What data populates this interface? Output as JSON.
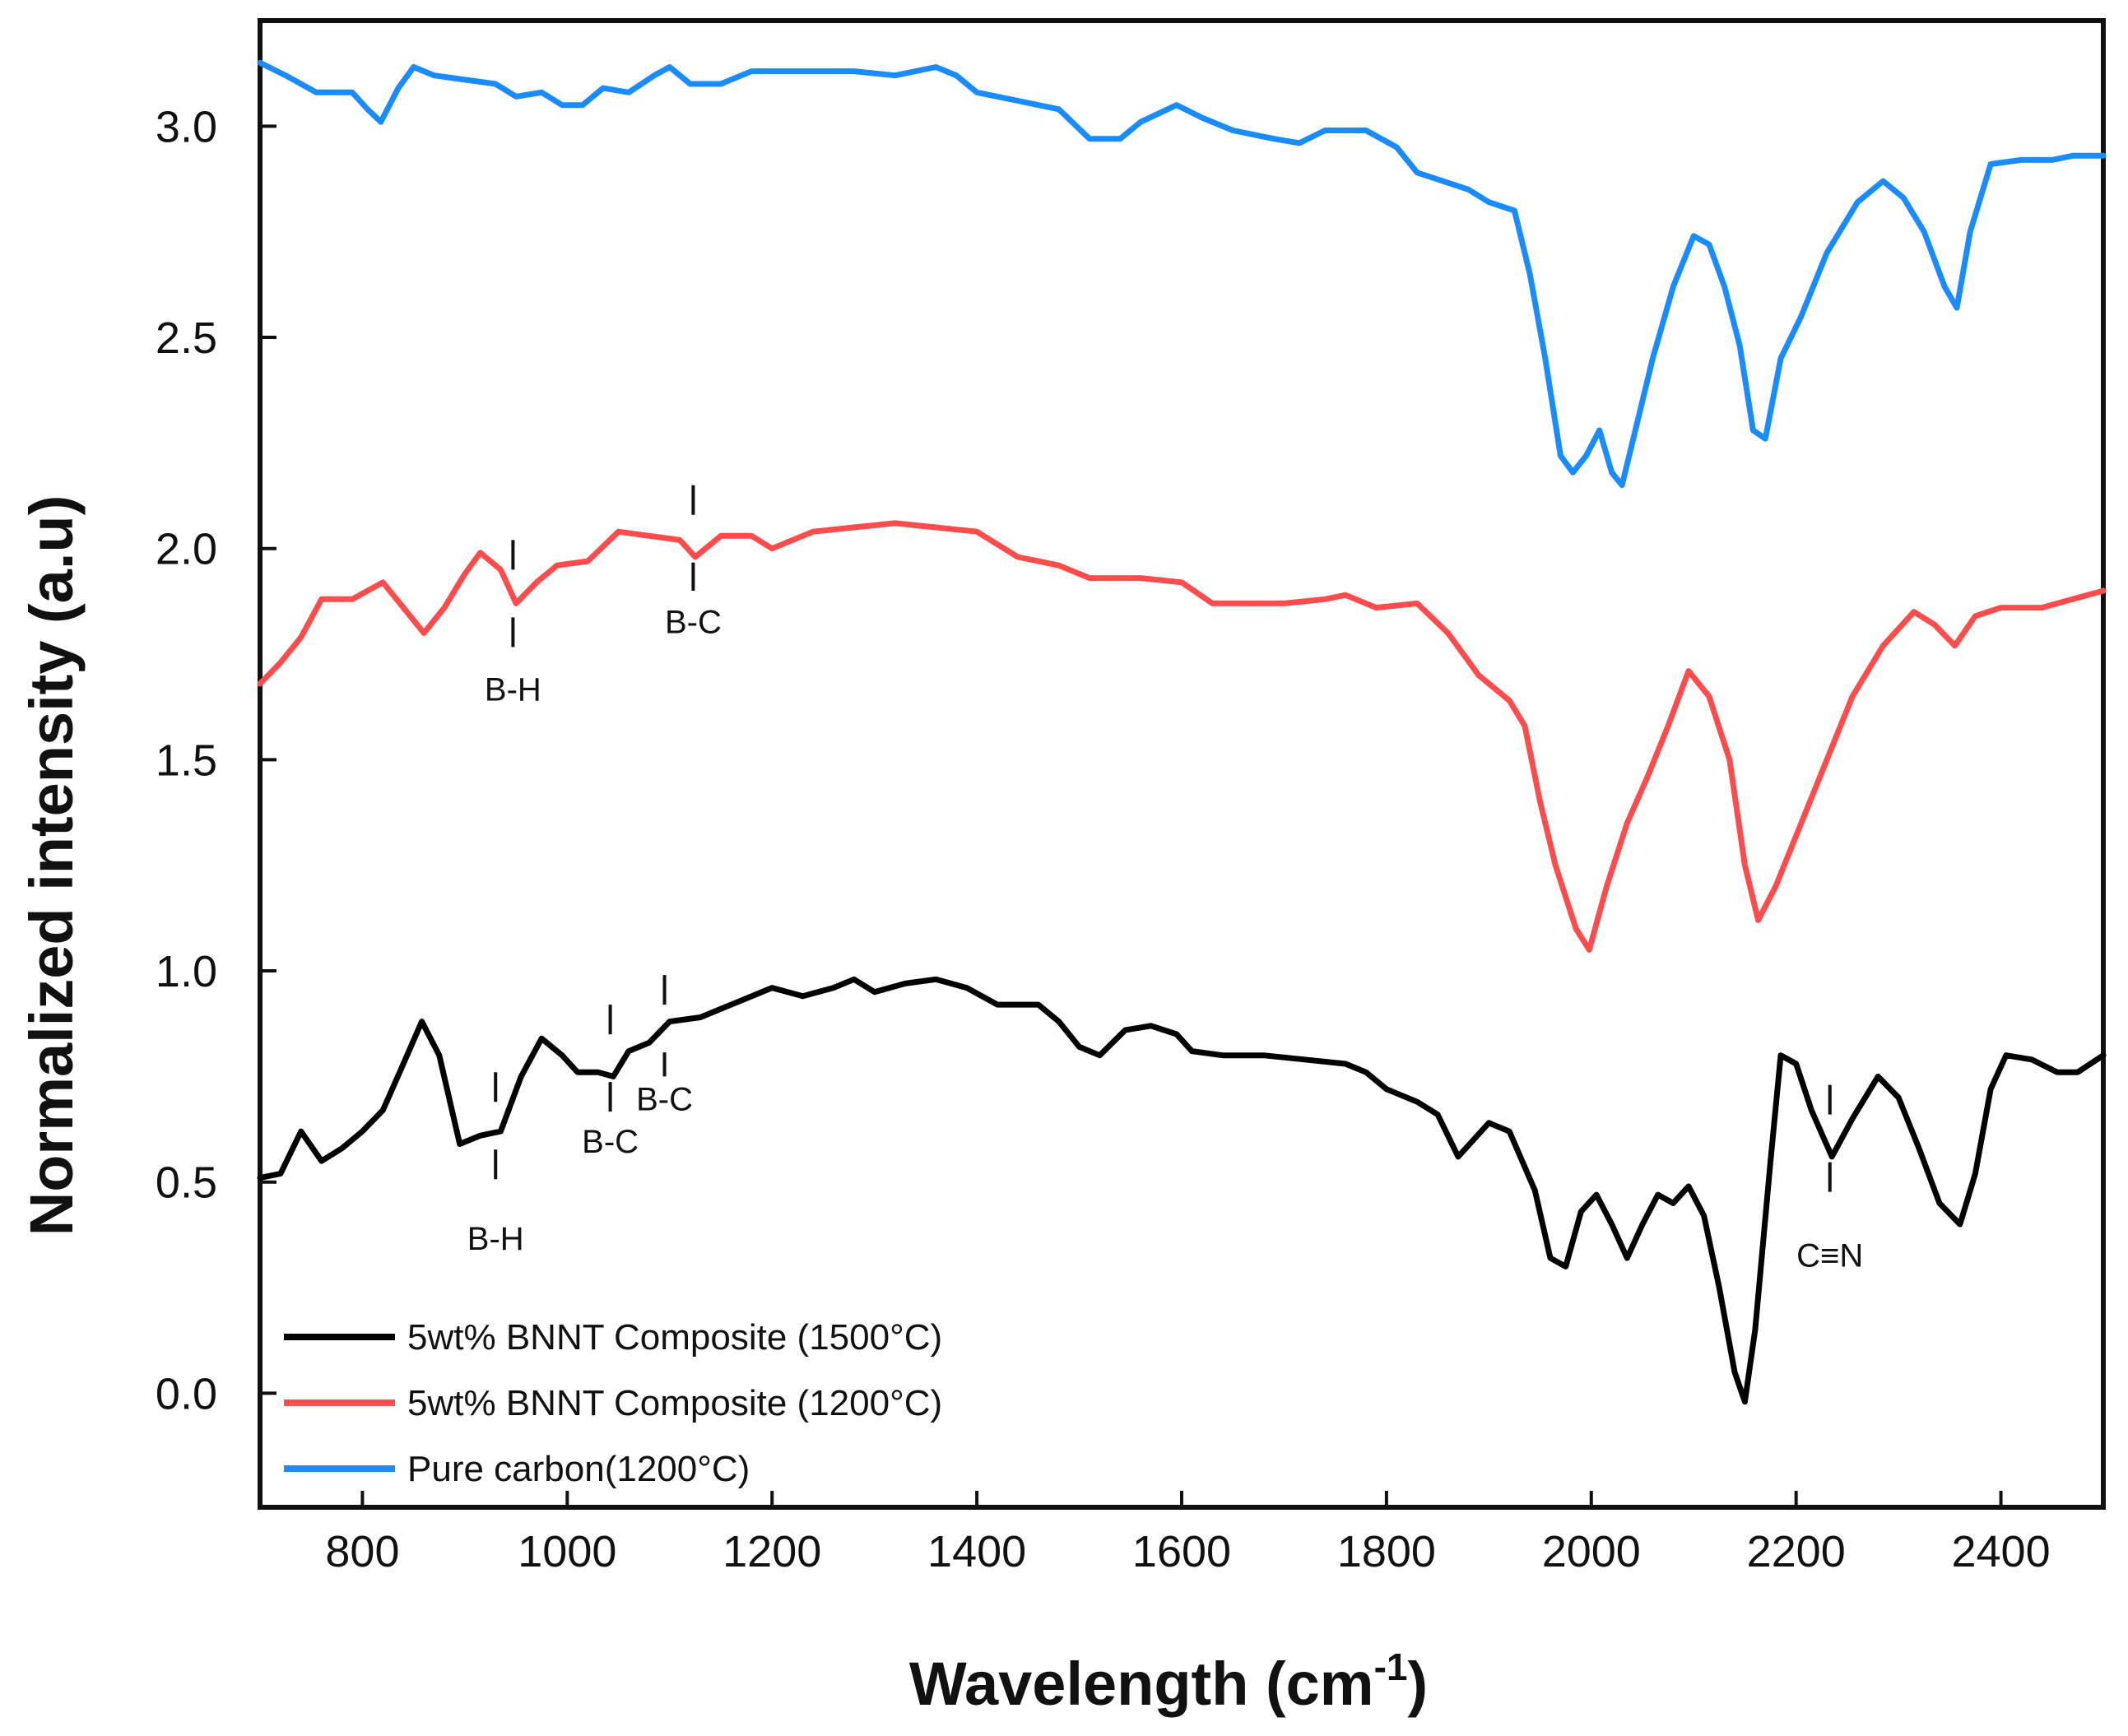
{
  "chart_data": {
    "type": "line",
    "title": "",
    "xlabel": "Wavelength (cm",
    "xlabel_sup": "-1",
    "xlabel_close": ")",
    "ylabel": "Normalized intensity (a.u)",
    "xlim": [
      700,
      2500
    ],
    "ylim": [
      -0.27,
      3.25
    ],
    "x_ticks": [
      800,
      1000,
      1200,
      1400,
      1600,
      1800,
      2000,
      2200,
      2400
    ],
    "x_tick_labels": [
      "800",
      "1000",
      "1200",
      "1400",
      "1600",
      "1800",
      "2000",
      "2200",
      "2400"
    ],
    "y_ticks": [
      0.0,
      0.5,
      1.0,
      1.5,
      2.0,
      2.5,
      3.0
    ],
    "y_tick_labels": [
      "0.0",
      "0.5",
      "1.0",
      "1.5",
      "2.0",
      "2.5",
      "3.0"
    ],
    "grid": false,
    "legend_position": "bottom-left",
    "series": [
      {
        "name": "5wt% BNNT Composite (1500°C)",
        "color": "#000000",
        "points": [
          [
            700,
            0.51
          ],
          [
            720,
            0.52
          ],
          [
            740,
            0.62
          ],
          [
            760,
            0.55
          ],
          [
            780,
            0.58
          ],
          [
            800,
            0.62
          ],
          [
            820,
            0.67
          ],
          [
            840,
            0.78
          ],
          [
            858,
            0.88
          ],
          [
            875,
            0.8
          ],
          [
            895,
            0.59
          ],
          [
            915,
            0.61
          ],
          [
            935,
            0.62
          ],
          [
            955,
            0.75
          ],
          [
            975,
            0.84
          ],
          [
            995,
            0.8
          ],
          [
            1010,
            0.76
          ],
          [
            1030,
            0.76
          ],
          [
            1045,
            0.75
          ],
          [
            1060,
            0.81
          ],
          [
            1080,
            0.83
          ],
          [
            1100,
            0.88
          ],
          [
            1130,
            0.89
          ],
          [
            1160,
            0.92
          ],
          [
            1200,
            0.96
          ],
          [
            1230,
            0.94
          ],
          [
            1260,
            0.96
          ],
          [
            1280,
            0.98
          ],
          [
            1300,
            0.95
          ],
          [
            1330,
            0.97
          ],
          [
            1360,
            0.98
          ],
          [
            1390,
            0.96
          ],
          [
            1420,
            0.92
          ],
          [
            1460,
            0.92
          ],
          [
            1480,
            0.88
          ],
          [
            1500,
            0.82
          ],
          [
            1520,
            0.8
          ],
          [
            1545,
            0.86
          ],
          [
            1570,
            0.87
          ],
          [
            1595,
            0.85
          ],
          [
            1610,
            0.81
          ],
          [
            1640,
            0.8
          ],
          [
            1680,
            0.8
          ],
          [
            1720,
            0.79
          ],
          [
            1760,
            0.78
          ],
          [
            1780,
            0.76
          ],
          [
            1800,
            0.72
          ],
          [
            1830,
            0.69
          ],
          [
            1850,
            0.66
          ],
          [
            1870,
            0.56
          ],
          [
            1900,
            0.64
          ],
          [
            1920,
            0.62
          ],
          [
            1945,
            0.48
          ],
          [
            1960,
            0.32
          ],
          [
            1975,
            0.3
          ],
          [
            1990,
            0.43
          ],
          [
            2005,
            0.47
          ],
          [
            2020,
            0.4
          ],
          [
            2035,
            0.32
          ],
          [
            2050,
            0.4
          ],
          [
            2065,
            0.47
          ],
          [
            2080,
            0.45
          ],
          [
            2095,
            0.49
          ],
          [
            2110,
            0.42
          ],
          [
            2125,
            0.25
          ],
          [
            2140,
            0.05
          ],
          [
            2150,
            -0.02
          ],
          [
            2160,
            0.15
          ],
          [
            2175,
            0.55
          ],
          [
            2185,
            0.8
          ],
          [
            2200,
            0.78
          ],
          [
            2215,
            0.67
          ],
          [
            2235,
            0.56
          ],
          [
            2255,
            0.65
          ],
          [
            2280,
            0.75
          ],
          [
            2300,
            0.7
          ],
          [
            2320,
            0.58
          ],
          [
            2340,
            0.45
          ],
          [
            2360,
            0.4
          ],
          [
            2375,
            0.52
          ],
          [
            2390,
            0.72
          ],
          [
            2405,
            0.8
          ],
          [
            2430,
            0.79
          ],
          [
            2455,
            0.76
          ],
          [
            2475,
            0.76
          ],
          [
            2500,
            0.8
          ]
        ]
      },
      {
        "name": "5wt% BNNT Composite (1200°C)",
        "color": "#ff4d4d",
        "points": [
          [
            700,
            1.68
          ],
          [
            720,
            1.73
          ],
          [
            740,
            1.79
          ],
          [
            760,
            1.88
          ],
          [
            790,
            1.88
          ],
          [
            820,
            1.92
          ],
          [
            840,
            1.86
          ],
          [
            860,
            1.8
          ],
          [
            880,
            1.86
          ],
          [
            900,
            1.94
          ],
          [
            915,
            1.99
          ],
          [
            935,
            1.95
          ],
          [
            950,
            1.87
          ],
          [
            970,
            1.92
          ],
          [
            990,
            1.96
          ],
          [
            1020,
            1.97
          ],
          [
            1050,
            2.04
          ],
          [
            1080,
            2.03
          ],
          [
            1110,
            2.02
          ],
          [
            1125,
            1.98
          ],
          [
            1150,
            2.03
          ],
          [
            1180,
            2.03
          ],
          [
            1200,
            2.0
          ],
          [
            1240,
            2.04
          ],
          [
            1280,
            2.05
          ],
          [
            1320,
            2.06
          ],
          [
            1360,
            2.05
          ],
          [
            1400,
            2.04
          ],
          [
            1440,
            1.98
          ],
          [
            1480,
            1.96
          ],
          [
            1510,
            1.93
          ],
          [
            1560,
            1.93
          ],
          [
            1600,
            1.92
          ],
          [
            1630,
            1.87
          ],
          [
            1660,
            1.87
          ],
          [
            1700,
            1.87
          ],
          [
            1740,
            1.88
          ],
          [
            1760,
            1.89
          ],
          [
            1790,
            1.86
          ],
          [
            1830,
            1.87
          ],
          [
            1860,
            1.8
          ],
          [
            1890,
            1.7
          ],
          [
            1920,
            1.64
          ],
          [
            1935,
            1.58
          ],
          [
            1950,
            1.4
          ],
          [
            1965,
            1.25
          ],
          [
            1985,
            1.1
          ],
          [
            1998,
            1.05
          ],
          [
            2015,
            1.2
          ],
          [
            2035,
            1.35
          ],
          [
            2055,
            1.46
          ],
          [
            2075,
            1.58
          ],
          [
            2095,
            1.71
          ],
          [
            2115,
            1.65
          ],
          [
            2135,
            1.5
          ],
          [
            2150,
            1.25
          ],
          [
            2163,
            1.12
          ],
          [
            2180,
            1.2
          ],
          [
            2205,
            1.35
          ],
          [
            2230,
            1.5
          ],
          [
            2255,
            1.65
          ],
          [
            2285,
            1.77
          ],
          [
            2315,
            1.85
          ],
          [
            2335,
            1.82
          ],
          [
            2355,
            1.77
          ],
          [
            2375,
            1.84
          ],
          [
            2400,
            1.86
          ],
          [
            2440,
            1.86
          ],
          [
            2470,
            1.88
          ],
          [
            2500,
            1.9
          ]
        ]
      },
      {
        "name": "Pure carbon(1200°C)",
        "color": "#1a8cff",
        "points": [
          [
            700,
            3.15
          ],
          [
            725,
            3.12
          ],
          [
            755,
            3.08
          ],
          [
            790,
            3.08
          ],
          [
            805,
            3.04
          ],
          [
            818,
            3.01
          ],
          [
            835,
            3.09
          ],
          [
            850,
            3.14
          ],
          [
            870,
            3.12
          ],
          [
            900,
            3.11
          ],
          [
            930,
            3.1
          ],
          [
            950,
            3.07
          ],
          [
            975,
            3.08
          ],
          [
            995,
            3.05
          ],
          [
            1015,
            3.05
          ],
          [
            1035,
            3.09
          ],
          [
            1060,
            3.08
          ],
          [
            1085,
            3.12
          ],
          [
            1100,
            3.14
          ],
          [
            1120,
            3.1
          ],
          [
            1150,
            3.1
          ],
          [
            1180,
            3.13
          ],
          [
            1230,
            3.13
          ],
          [
            1280,
            3.13
          ],
          [
            1320,
            3.12
          ],
          [
            1360,
            3.14
          ],
          [
            1380,
            3.12
          ],
          [
            1400,
            3.08
          ],
          [
            1440,
            3.06
          ],
          [
            1480,
            3.04
          ],
          [
            1510,
            2.97
          ],
          [
            1540,
            2.97
          ],
          [
            1560,
            3.01
          ],
          [
            1595,
            3.05
          ],
          [
            1620,
            3.02
          ],
          [
            1650,
            2.99
          ],
          [
            1690,
            2.97
          ],
          [
            1715,
            2.96
          ],
          [
            1740,
            2.99
          ],
          [
            1780,
            2.99
          ],
          [
            1810,
            2.95
          ],
          [
            1830,
            2.89
          ],
          [
            1855,
            2.87
          ],
          [
            1880,
            2.85
          ],
          [
            1900,
            2.82
          ],
          [
            1925,
            2.8
          ],
          [
            1940,
            2.65
          ],
          [
            1955,
            2.45
          ],
          [
            1970,
            2.22
          ],
          [
            1982,
            2.18
          ],
          [
            1995,
            2.22
          ],
          [
            2008,
            2.28
          ],
          [
            2020,
            2.18
          ],
          [
            2030,
            2.15
          ],
          [
            2045,
            2.3
          ],
          [
            2060,
            2.45
          ],
          [
            2080,
            2.62
          ],
          [
            2100,
            2.74
          ],
          [
            2115,
            2.72
          ],
          [
            2130,
            2.62
          ],
          [
            2145,
            2.48
          ],
          [
            2158,
            2.28
          ],
          [
            2170,
            2.26
          ],
          [
            2185,
            2.45
          ],
          [
            2205,
            2.55
          ],
          [
            2230,
            2.7
          ],
          [
            2260,
            2.82
          ],
          [
            2285,
            2.87
          ],
          [
            2305,
            2.83
          ],
          [
            2325,
            2.75
          ],
          [
            2345,
            2.62
          ],
          [
            2357,
            2.57
          ],
          [
            2370,
            2.75
          ],
          [
            2390,
            2.91
          ],
          [
            2420,
            2.92
          ],
          [
            2450,
            2.92
          ],
          [
            2470,
            2.93
          ],
          [
            2500,
            2.93
          ]
        ]
      }
    ],
    "annotations": [
      {
        "label": "B-H",
        "x": 947,
        "y_top": 2.02,
        "y_bottom": 1.72,
        "label_y": 1.64,
        "series": "1200"
      },
      {
        "label": "B-C",
        "x": 1123,
        "y_top": 2.15,
        "y_bottom": 1.9,
        "label_y": 1.8,
        "series": "1200"
      },
      {
        "label": "B-H",
        "x": 930,
        "y_top": 0.76,
        "y_bottom": 0.42,
        "label_y": 0.34,
        "series": "1500"
      },
      {
        "label": "B-C",
        "x": 1042,
        "y_top": 0.92,
        "y_bottom": 0.65,
        "label_y": 0.57,
        "series": "1500"
      },
      {
        "label": "B-C",
        "x": 1095,
        "y_top": 0.99,
        "y_bottom": 0.75,
        "label_y": 0.67,
        "series": "1500"
      },
      {
        "label": "C≡N",
        "x": 2233,
        "y_top": 0.73,
        "y_bottom": 0.44,
        "label_y": 0.3,
        "series": "1500"
      }
    ]
  }
}
